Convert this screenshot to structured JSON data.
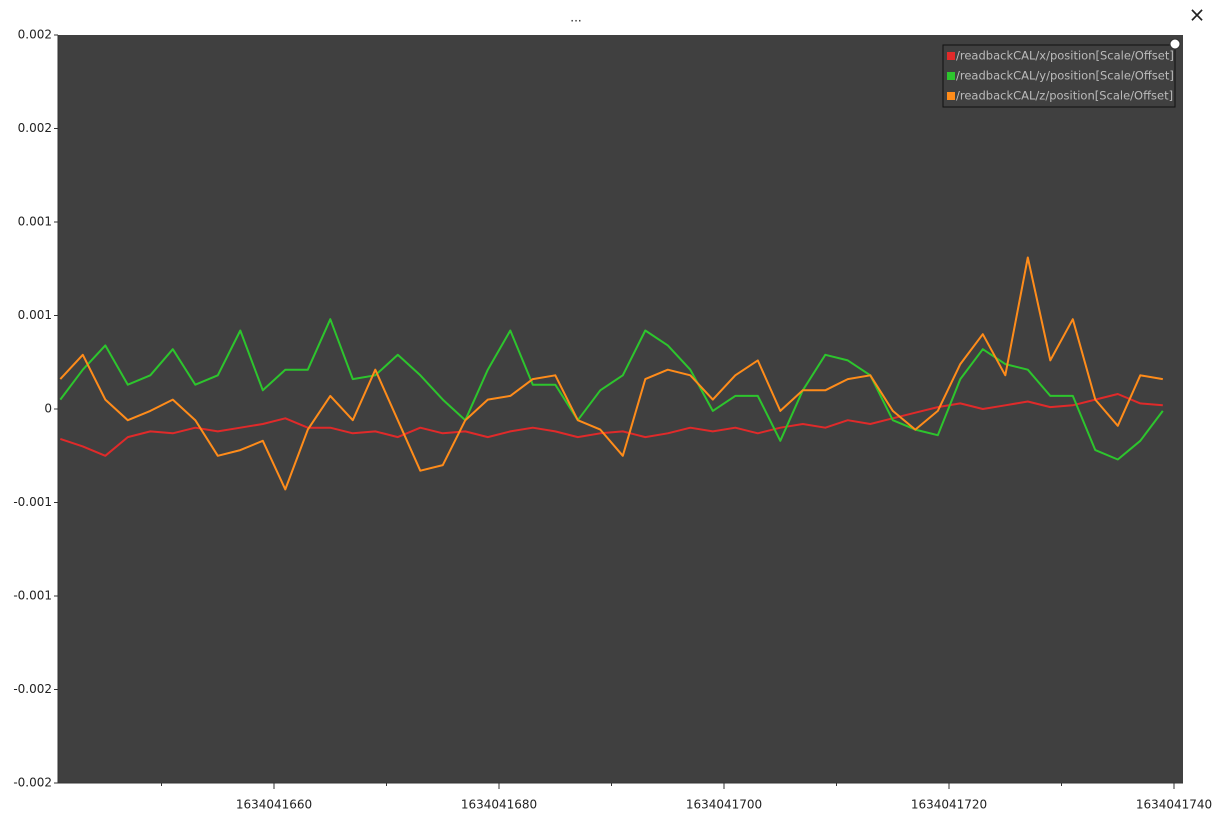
{
  "window": {
    "title": "...",
    "close": "×"
  },
  "chart_data": {
    "type": "line",
    "x": [
      1634041641,
      1634041643,
      1634041645,
      1634041647,
      1634041649,
      1634041651,
      1634041653,
      1634041655,
      1634041657,
      1634041659,
      1634041661,
      1634041663,
      1634041665,
      1634041667,
      1634041669,
      1634041671,
      1634041673,
      1634041675,
      1634041677,
      1634041679,
      1634041681,
      1634041683,
      1634041685,
      1634041687,
      1634041689,
      1634041691,
      1634041693,
      1634041695,
      1634041697,
      1634041699,
      1634041701,
      1634041703,
      1634041705,
      1634041707,
      1634041709,
      1634041711,
      1634041713,
      1634041715,
      1634041717,
      1634041719,
      1634041721,
      1634041723,
      1634041725,
      1634041727,
      1634041729,
      1634041731,
      1634041733,
      1634041735,
      1634041737,
      1634041739
    ],
    "series": [
      {
        "name": "/readbackCAL/x/position[Scale/Offset]",
        "color": "#e02a2a",
        "values": [
          -0.00016,
          -0.0002,
          -0.00025,
          -0.00015,
          -0.00012,
          -0.00013,
          -0.0001,
          -0.00012,
          -0.0001,
          -8e-05,
          -5e-05,
          -0.0001,
          -0.0001,
          -0.00013,
          -0.00012,
          -0.00015,
          -0.0001,
          -0.00013,
          -0.00012,
          -0.00015,
          -0.00012,
          -0.0001,
          -0.00012,
          -0.00015,
          -0.00013,
          -0.00012,
          -0.00015,
          -0.00013,
          -0.0001,
          -0.00012,
          -0.0001,
          -0.00013,
          -0.0001,
          -8e-05,
          -0.0001,
          -6e-05,
          -8e-05,
          -5e-05,
          -2e-05,
          1e-05,
          3e-05,
          0,
          2e-05,
          4e-05,
          1e-05,
          2e-05,
          5e-05,
          8e-05,
          3e-05,
          2e-05
        ]
      },
      {
        "name": "/readbackCAL/y/position[Scale/Offset]",
        "color": "#2dc52d",
        "values": [
          5e-05,
          0.00021,
          0.00034,
          0.00013,
          0.00018,
          0.00032,
          0.00013,
          0.00018,
          0.00042,
          0.0001,
          0.00021,
          0.00021,
          0.00048,
          0.00016,
          0.00018,
          0.00029,
          0.00018,
          5e-05,
          -6e-05,
          0.00021,
          0.00042,
          0.00013,
          0.00013,
          -6e-05,
          0.0001,
          0.00018,
          0.00042,
          0.00034,
          0.00021,
          -1e-05,
          7e-05,
          7e-05,
          -0.00017,
          0.0001,
          0.00029,
          0.00026,
          0.00018,
          -6e-05,
          -0.00011,
          -0.00014,
          0.00016,
          0.00032,
          0.00024,
          0.00021,
          7e-05,
          7e-05,
          -0.00022,
          -0.00027,
          -0.00017,
          -1e-05
        ]
      },
      {
        "name": "/readbackCAL/z/position[Scale/Offset]",
        "color": "#ff8c1a",
        "values": [
          0.00016,
          0.00029,
          5e-05,
          -6e-05,
          -1e-05,
          5e-05,
          -6e-05,
          -0.00025,
          -0.00022,
          -0.00017,
          -0.00043,
          -0.00011,
          7e-05,
          -6e-05,
          0.00021,
          -6e-05,
          -0.00033,
          -0.0003,
          -6e-05,
          5e-05,
          7e-05,
          0.00016,
          0.00018,
          -6e-05,
          -0.00011,
          -0.00025,
          0.00016,
          0.00021,
          0.00018,
          5e-05,
          0.00018,
          0.00026,
          -1e-05,
          0.0001,
          0.0001,
          0.00016,
          0.00018,
          -1e-05,
          -0.00011,
          -1e-05,
          0.00024,
          0.0004,
          0.00018,
          0.00081,
          0.00026,
          0.00048,
          5e-05,
          -9e-05,
          0.00018,
          0.00016
        ]
      }
    ],
    "xlim": [
      1634041640.8,
      1634041740.8
    ],
    "xticks": [
      1634041660,
      1634041680,
      1634041700,
      1634041720,
      1634041740
    ],
    "xminorticks": [
      1634041650,
      1634041670,
      1634041690,
      1634041710,
      1634041730
    ],
    "ylim": [
      -0.002,
      0.002
    ],
    "yticks": [
      {
        "value": 0.002,
        "label": "0.002"
      },
      {
        "value": 0.0015,
        "label": "0.002"
      },
      {
        "value": 0.001,
        "label": "0.001"
      },
      {
        "value": 0.0005,
        "label": "0.001"
      },
      0,
      {
        "value": -0.0005,
        "label": "-0.001"
      },
      {
        "value": -0.001,
        "label": "-0.001"
      },
      {
        "value": -0.0015,
        "label": "-0.002"
      },
      {
        "value": -0.002,
        "label": "-0.002"
      }
    ],
    "legend": "top-right",
    "background": "#404040"
  }
}
